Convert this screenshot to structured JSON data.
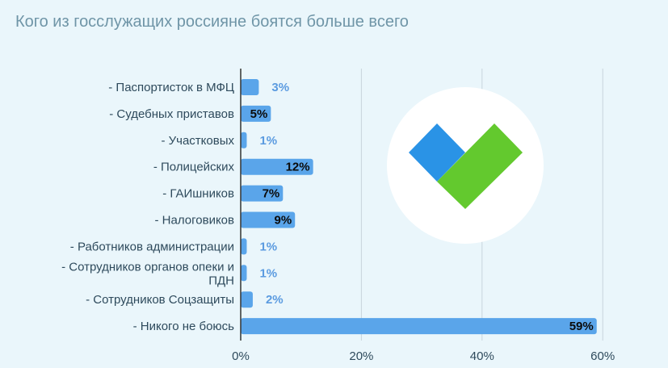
{
  "page": {
    "title": "Кого из госслужащих россияне боятся больше всего"
  },
  "colors": {
    "bar": "#5aa5ea",
    "background": "#eaf6fb",
    "logo_blue": "#2a93e6",
    "logo_green": "#63c92e",
    "title": "#6f95a7"
  },
  "chart_data": {
    "type": "bar",
    "orientation": "horizontal",
    "title": "Кого из госслужащих россияне боятся больше всего",
    "categories": [
      "- Паспортисток в МФЦ",
      "- Судебных приставов",
      "- Участковых",
      "- Полицейских",
      "- ГАИшников",
      "- Налоговиков",
      "- Работников администрации",
      "- Сотрудников органов опеки и ПДН",
      "- Сотрудников Соцзащиты",
      "- Никого не боюсь"
    ],
    "values": [
      3,
      5,
      1,
      12,
      7,
      9,
      1,
      1,
      2,
      59
    ],
    "value_labels": [
      "3%",
      "5%",
      "1%",
      "12%",
      "7%",
      "9%",
      "1%",
      "1%",
      "2%",
      "59%"
    ],
    "xlim": [
      0,
      65
    ],
    "x_ticks": [
      0,
      20,
      40,
      60
    ],
    "x_tick_labels": [
      "0%",
      "20%",
      "40%",
      "60%"
    ],
    "grid": true,
    "legend": "none",
    "logo": "heart-check-logo"
  }
}
